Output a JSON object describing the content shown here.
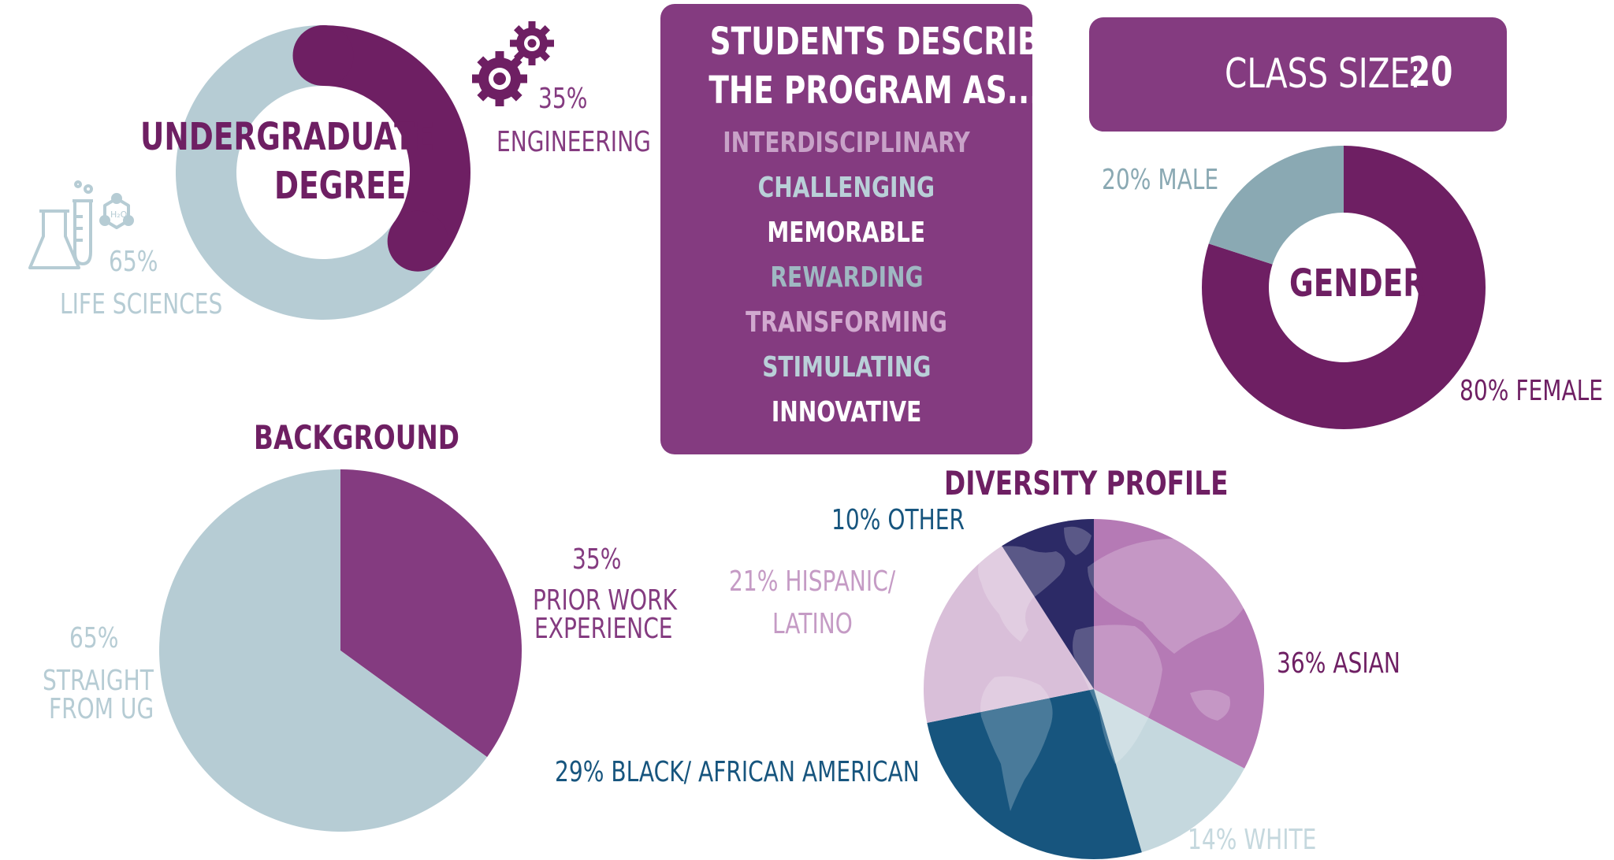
{
  "colors": {
    "dark_purple": "#6e1f63",
    "mid_purple": "#843b80",
    "light_purple": "#c59bc5",
    "pale_purple": "#d9bfd9",
    "light_blue_grey": "#b6ccd4",
    "teal_grey": "#8aa9b3",
    "navy": "#2c2a66",
    "blue": "#17557e"
  },
  "program_box": {
    "title_line1": "STUDENTS DESCRIBE",
    "title_line2": "THE PROGRAM AS....",
    "words": [
      {
        "text": "INTERDISCIPLINARY",
        "color": "#c8a2c8"
      },
      {
        "text": "CHALLENGING",
        "color": "#b9d0d8"
      },
      {
        "text": "MEMORABLE",
        "color": "#ffffff"
      },
      {
        "text": "REWARDING",
        "color": "#9fb8c2"
      },
      {
        "text": "TRANSFORMING",
        "color": "#d1a9cf"
      },
      {
        "text": "STIMULATING",
        "color": "#b9d0d8"
      },
      {
        "text": "INNOVATIVE",
        "color": "#ffffff"
      }
    ]
  },
  "class_size": {
    "label": "CLASS SIZE:",
    "value": "20",
    "icon": "classroom-icon"
  },
  "icons": {
    "gears": "gears-icon",
    "lab": "lab-flask-icon",
    "globe": "world-map-icon"
  },
  "chart_data": [
    {
      "type": "pie",
      "variant": "donut",
      "title": "UNDERGRADUATE DEGREE",
      "slices": [
        {
          "pct_label": "35%",
          "name": "ENGINEERING",
          "value": 35,
          "color": "#6e1f63"
        },
        {
          "pct_label": "65%",
          "name": "LIFE SCIENCES",
          "value": 65,
          "color": "#b6ccd4"
        }
      ]
    },
    {
      "type": "pie",
      "variant": "donut",
      "title": "GENDER",
      "slices": [
        {
          "label": "80% FEMALE",
          "value": 80,
          "color": "#6e1f63"
        },
        {
          "label": "20% MALE",
          "value": 20,
          "color": "#8aa9b3"
        }
      ]
    },
    {
      "type": "pie",
      "title": "BACKGROUND",
      "slices": [
        {
          "pct_label": "35%",
          "name_line1": "PRIOR WORK",
          "name_line2": "EXPERIENCE",
          "value": 35,
          "color": "#843b80"
        },
        {
          "pct_label": "65%",
          "name_line1": "STRAIGHT",
          "name_line2": "FROM UG",
          "value": 65,
          "color": "#b6ccd4"
        }
      ]
    },
    {
      "type": "pie",
      "title": "DIVERSITY PROFILE",
      "slices": [
        {
          "label": "36% ASIAN",
          "value": 36,
          "color": "#b57ab5"
        },
        {
          "label": "14% WHITE",
          "value": 14,
          "color": "#c5d8de"
        },
        {
          "label": "29% BLACK/ AFRICAN AMERICAN",
          "value": 29,
          "color": "#17557e"
        },
        {
          "label_line1": "21% HISPANIC/",
          "label_line2": "LATINO",
          "value": 21,
          "color": "#d9bfd9"
        },
        {
          "label": "10% OTHER",
          "value": 10,
          "color": "#2c2a66"
        }
      ]
    }
  ]
}
